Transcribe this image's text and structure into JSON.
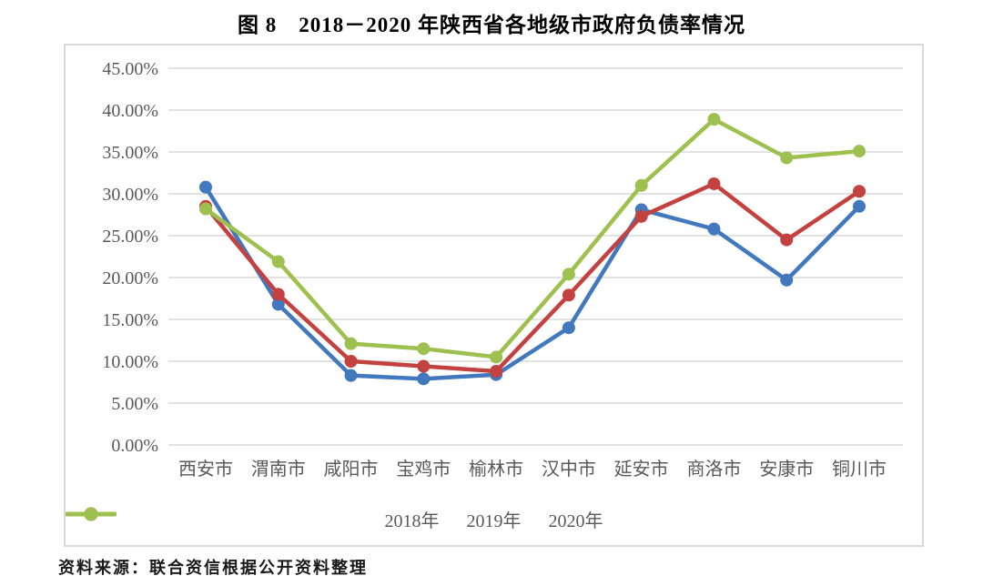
{
  "title": "图 8　2018－2020 年陕西省各地级市政府负债率情况",
  "source": "资料来源：联合资信根据公开资料整理",
  "colors": {
    "grid": "#d9d9d9",
    "axis_text": "#595959",
    "series_2018": "#4178be",
    "series_2019": "#c3423f",
    "series_2020": "#9dc04f"
  },
  "chart_data": {
    "type": "line",
    "categories": [
      "西安市",
      "渭南市",
      "咸阳市",
      "宝鸡市",
      "榆林市",
      "汉中市",
      "延安市",
      "商洛市",
      "安康市",
      "铜川市"
    ],
    "series": [
      {
        "name": "2018年",
        "color": "#4178be",
        "values": [
          30.8,
          16.8,
          8.3,
          7.9,
          8.4,
          14.0,
          28.1,
          25.8,
          19.7,
          28.5
        ]
      },
      {
        "name": "2019年",
        "color": "#c3423f",
        "values": [
          28.5,
          18.0,
          10.0,
          9.4,
          8.8,
          17.9,
          27.3,
          31.2,
          24.5,
          30.3
        ]
      },
      {
        "name": "2020年",
        "color": "#9dc04f",
        "values": [
          28.2,
          21.9,
          12.1,
          11.5,
          10.5,
          20.4,
          31.0,
          38.9,
          34.3,
          35.1
        ]
      }
    ],
    "title": "图 8　2018－2020 年陕西省各地级市政府负债率情况",
    "xlabel": "",
    "ylabel": "",
    "ylim": [
      0,
      45
    ],
    "ytick_step": 5,
    "ytick_labels": [
      "0.00%",
      "5.00%",
      "10.00%",
      "15.00%",
      "20.00%",
      "25.00%",
      "30.00%",
      "35.00%",
      "40.00%",
      "45.00%"
    ],
    "grid": true,
    "legend_position": "bottom"
  }
}
